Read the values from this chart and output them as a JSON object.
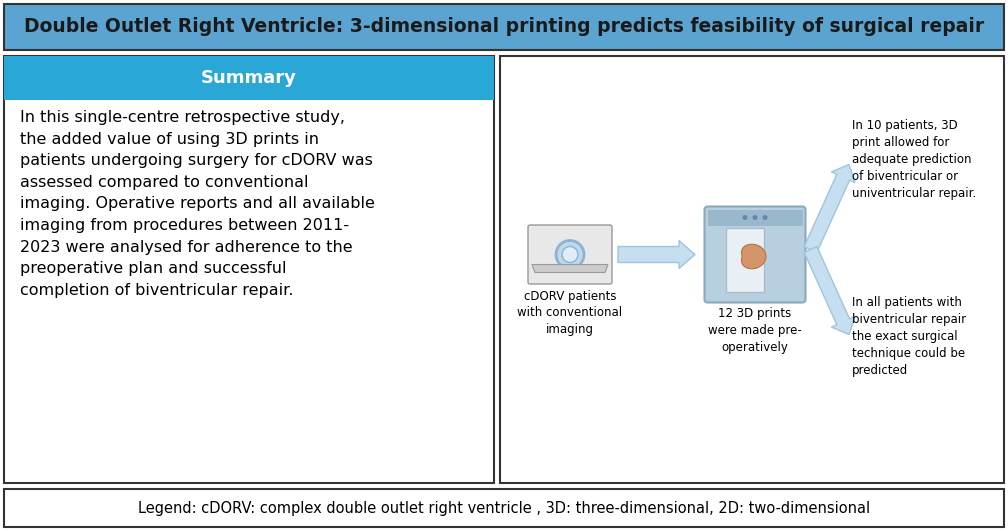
{
  "title": "Double Outlet Right Ventricle: 3-dimensional printing predicts feasibility of surgical repair",
  "title_bg": "#5BA3D0",
  "title_text_color": "#1a1a1a",
  "title_fontsize": 13.5,
  "summary_header": "Summary",
  "summary_header_bg": "#29A8D8",
  "summary_header_text_color": "white",
  "summary_header_fontsize": 13,
  "summary_text": "In this single-centre retrospective study,\nthe added value of using 3D prints in\npatients undergoing surgery for cDORV was\nassessed compared to conventional\nimaging. Operative reports and all available\nimaging from procedures between 2011-\n2023 were analysed for adherence to the\npreoperative plan and successful\ncompletion of biventricular repair.",
  "summary_text_fontsize": 11.5,
  "legend_text": "Legend: cDORV: complex double outlet right ventricle , 3D: three-dimensional, 2D: two-dimensional",
  "legend_fontsize": 10.5,
  "caption1": "cDORV patients\nwith conventional\nimaging",
  "caption2": "12 3D prints\nwere made pre-\noperatively",
  "caption3_top": "In 10 patients, 3D\nprint allowed for\nadequate prediction\nof biventricular or\nuniventricular repair.",
  "caption3_bottom": "In all patients with\nbiventricular repair\nthe exact surgical\ntechnique could be\npredicted",
  "border_color": "#333333",
  "background_color": "white",
  "arrow_color": "#C5DFF0",
  "arrow_edge_color": "#A0C4DC",
  "mri_color": "#D8D8D8",
  "printer_color": "#B8CFDF",
  "heart_color": "#D4956A"
}
